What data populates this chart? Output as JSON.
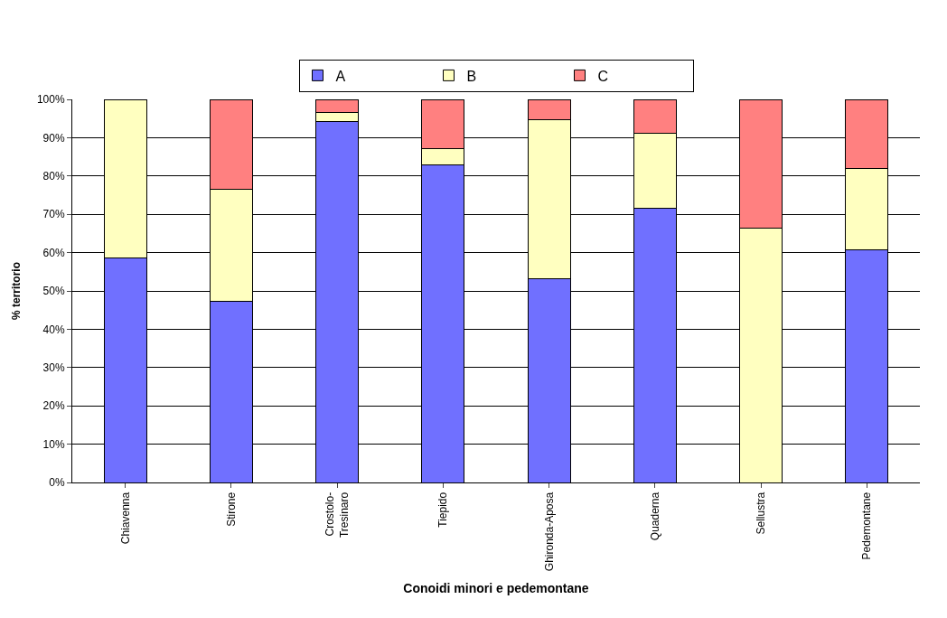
{
  "chart_data": {
    "type": "bar",
    "stacked": true,
    "xlabel": "Conoidi minori e pedemontane",
    "ylabel": "% territorio",
    "categories": [
      "Chiavenna",
      "Stirone",
      "Crostolo-\nTresinaro",
      "Tiepido",
      "Ghironda-Aposa",
      "Quaderna",
      "Sellustra",
      "Pedemontane"
    ],
    "series": [
      {
        "name": "A",
        "color": "#7070ff",
        "values": [
          58.7,
          47.2,
          94.2,
          83.0,
          53.2,
          71.5,
          null,
          60.7
        ]
      },
      {
        "name": "B",
        "color": "#ffffc0",
        "values": [
          41.3,
          29.3,
          2.4,
          4.1,
          41.6,
          19.7,
          66.5,
          21.3
        ]
      },
      {
        "name": "C",
        "color": "#ff8080",
        "values": [
          null,
          23.5,
          3.4,
          12.9,
          5.2,
          8.8,
          33.5,
          18.0
        ]
      }
    ],
    "ylim": [
      0,
      100
    ],
    "yticks": [
      {
        "value": 0,
        "label": "0%"
      },
      {
        "value": 10,
        "label": "10%"
      },
      {
        "value": 20,
        "label": "20%"
      },
      {
        "value": 30,
        "label": "30%"
      },
      {
        "value": 40,
        "label": "40%"
      },
      {
        "value": 50,
        "label": "50%"
      },
      {
        "value": 60,
        "label": "60%"
      },
      {
        "value": 70,
        "label": "70%"
      },
      {
        "value": 80,
        "label": "80%"
      },
      {
        "value": 90,
        "label": "90%"
      },
      {
        "value": 100,
        "label": "100%"
      }
    ],
    "grid": "y",
    "legend": "top"
  }
}
